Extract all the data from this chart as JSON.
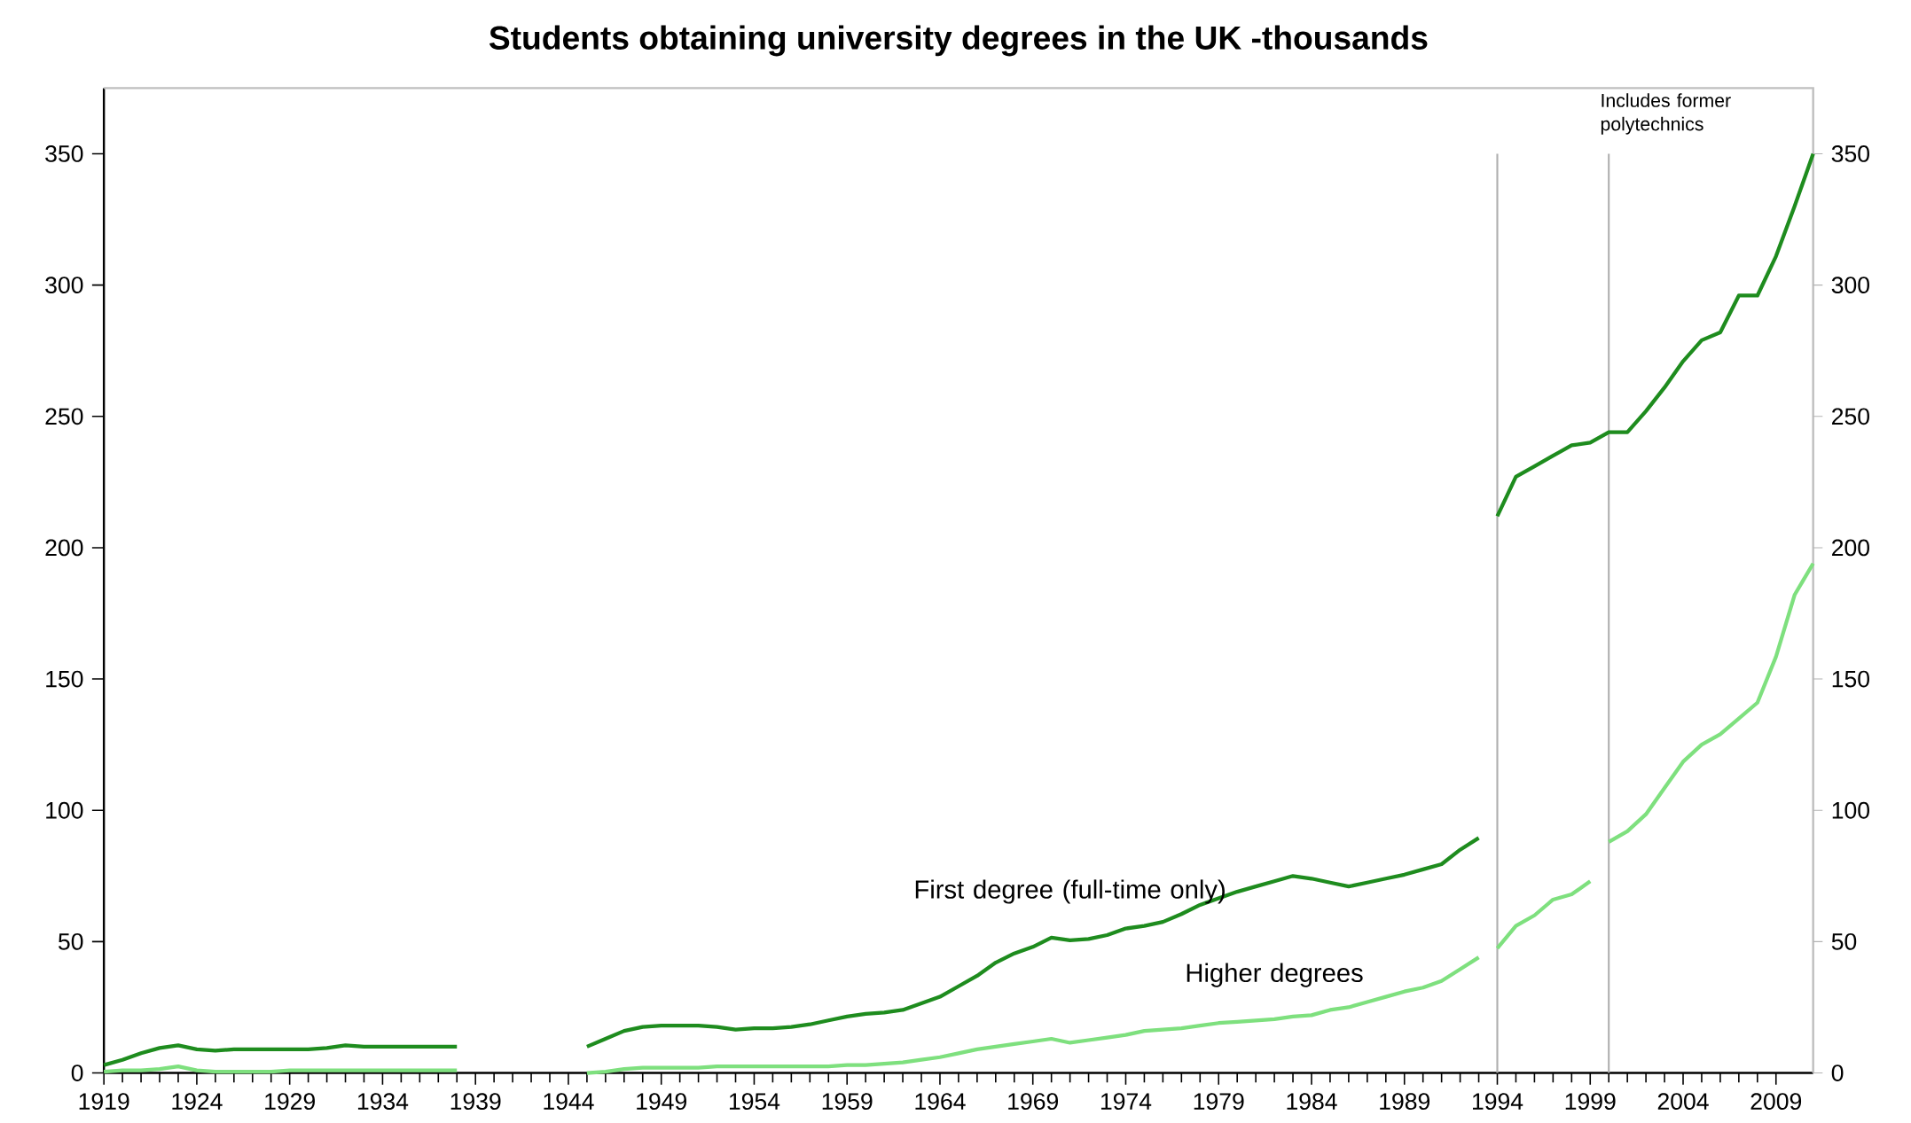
{
  "chart_data": {
    "type": "line",
    "title": "Students obtaining university degrees in the UK -thousands",
    "series": [
      {
        "name": "First degree (full-time only)",
        "color": "#1e8c1e",
        "x": [
          1919,
          1920,
          1921,
          1922,
          1923,
          1924,
          1925,
          1926,
          1927,
          1928,
          1929,
          1930,
          1931,
          1932,
          1933,
          1934,
          1935,
          1936,
          1937,
          1938,
          1941,
          1945,
          1946,
          1947,
          1948,
          1949,
          1950,
          1951,
          1952,
          1953,
          1954,
          1955,
          1956,
          1957,
          1958,
          1959,
          1960,
          1961,
          1962,
          1963,
          1964,
          1965,
          1966,
          1967,
          1968,
          1969,
          1970,
          1971,
          1972,
          1973,
          1974,
          1975,
          1976,
          1977,
          1978,
          1979,
          1980,
          1981,
          1982,
          1983,
          1984,
          1985,
          1986,
          1987,
          1988,
          1989,
          1990,
          1991,
          1992,
          1993,
          1993.5,
          1994,
          1995,
          1996,
          1997,
          1998,
          1999,
          2000,
          2001,
          2002,
          2003,
          2004,
          2005,
          2006,
          2007,
          2008,
          2009,
          2010,
          2011
        ],
        "values": [
          3,
          5,
          7.5,
          9.5,
          10.5,
          9,
          8.5,
          9,
          9,
          9,
          9,
          9,
          9.5,
          10.5,
          10,
          10,
          10,
          10,
          10,
          10,
          null,
          10,
          13,
          16,
          17.5,
          18,
          18,
          18,
          17.5,
          16.5,
          17,
          17,
          17.5,
          18.5,
          20,
          21.5,
          22.5,
          23,
          24,
          26.5,
          29,
          33,
          37,
          42,
          45.5,
          48,
          51.5,
          50.5,
          51,
          52.5,
          55,
          56,
          57.5,
          60.5,
          64,
          66.5,
          69,
          71,
          73,
          75,
          74,
          72.5,
          71,
          72.5,
          74,
          75.5,
          77.5,
          79.5,
          85,
          89.5,
          null,
          212,
          227,
          231,
          235,
          239,
          240,
          244,
          244,
          252,
          261,
          271,
          279,
          282,
          296,
          296,
          311,
          330,
          350
        ]
      },
      {
        "name": "Higher degrees",
        "color": "#7ee07e",
        "x": [
          1919,
          1920,
          1921,
          1922,
          1923,
          1924,
          1925,
          1926,
          1927,
          1928,
          1929,
          1930,
          1931,
          1932,
          1933,
          1934,
          1935,
          1936,
          1937,
          1938,
          1941,
          1945,
          1946,
          1947,
          1948,
          1949,
          1950,
          1951,
          1952,
          1953,
          1954,
          1955,
          1956,
          1957,
          1958,
          1959,
          1960,
          1961,
          1962,
          1963,
          1964,
          1965,
          1966,
          1967,
          1968,
          1969,
          1970,
          1971,
          1972,
          1973,
          1974,
          1975,
          1976,
          1977,
          1978,
          1979,
          1980,
          1981,
          1982,
          1983,
          1984,
          1985,
          1986,
          1987,
          1988,
          1989,
          1990,
          1991,
          1992,
          1993,
          1993.5,
          1994,
          1995,
          1996,
          1997,
          1998,
          1999,
          1999.5,
          2000,
          2001,
          2002,
          2003,
          2004,
          2005,
          2006,
          2007,
          2008,
          2009,
          2010,
          2011
        ],
        "values": [
          0.5,
          1,
          1,
          1.5,
          2.5,
          1,
          0.5,
          0.5,
          0.5,
          0.5,
          1,
          1,
          1,
          1,
          1,
          1,
          1,
          1,
          1,
          1,
          null,
          0,
          0.5,
          1.5,
          2,
          2,
          2,
          2,
          2.5,
          2.5,
          2.5,
          2.5,
          2.5,
          2.5,
          2.5,
          3,
          3,
          3.5,
          4,
          5,
          6,
          7.5,
          9,
          10,
          11,
          12,
          13,
          11.5,
          12.5,
          13.5,
          14.5,
          16,
          16.5,
          17,
          18,
          19,
          19.5,
          20,
          20.5,
          21.5,
          22,
          24,
          25,
          27,
          29,
          31,
          32.5,
          35,
          39.5,
          44,
          null,
          47.5,
          56,
          60,
          66,
          68,
          73,
          null,
          88,
          92,
          98.5,
          108.5,
          118.5,
          125,
          129,
          135,
          141,
          158.5,
          182,
          194
        ]
      }
    ],
    "xlim": [
      1919,
      2011
    ],
    "xticks": [
      1919,
      1924,
      1929,
      1934,
      1939,
      1944,
      1949,
      1954,
      1959,
      1964,
      1969,
      1974,
      1979,
      1984,
      1989,
      1994,
      1999,
      2004,
      2009
    ],
    "ylim": [
      0,
      375
    ],
    "yticks": [
      0,
      50,
      100,
      150,
      200,
      250,
      300,
      350
    ],
    "y2lim": [
      0,
      375
    ],
    "y2ticks": [
      0,
      50,
      100,
      150,
      200,
      250,
      300,
      350
    ],
    "ref_lines": [
      {
        "axis": "x",
        "value": 1994,
        "color": "#b0b0b0"
      },
      {
        "axis": "x",
        "value": 2000,
        "color": "#b0b0b0"
      }
    ],
    "annotations": [
      "Includes former polytechnics"
    ],
    "grid": false,
    "marker": "none",
    "line_style": "solid"
  }
}
